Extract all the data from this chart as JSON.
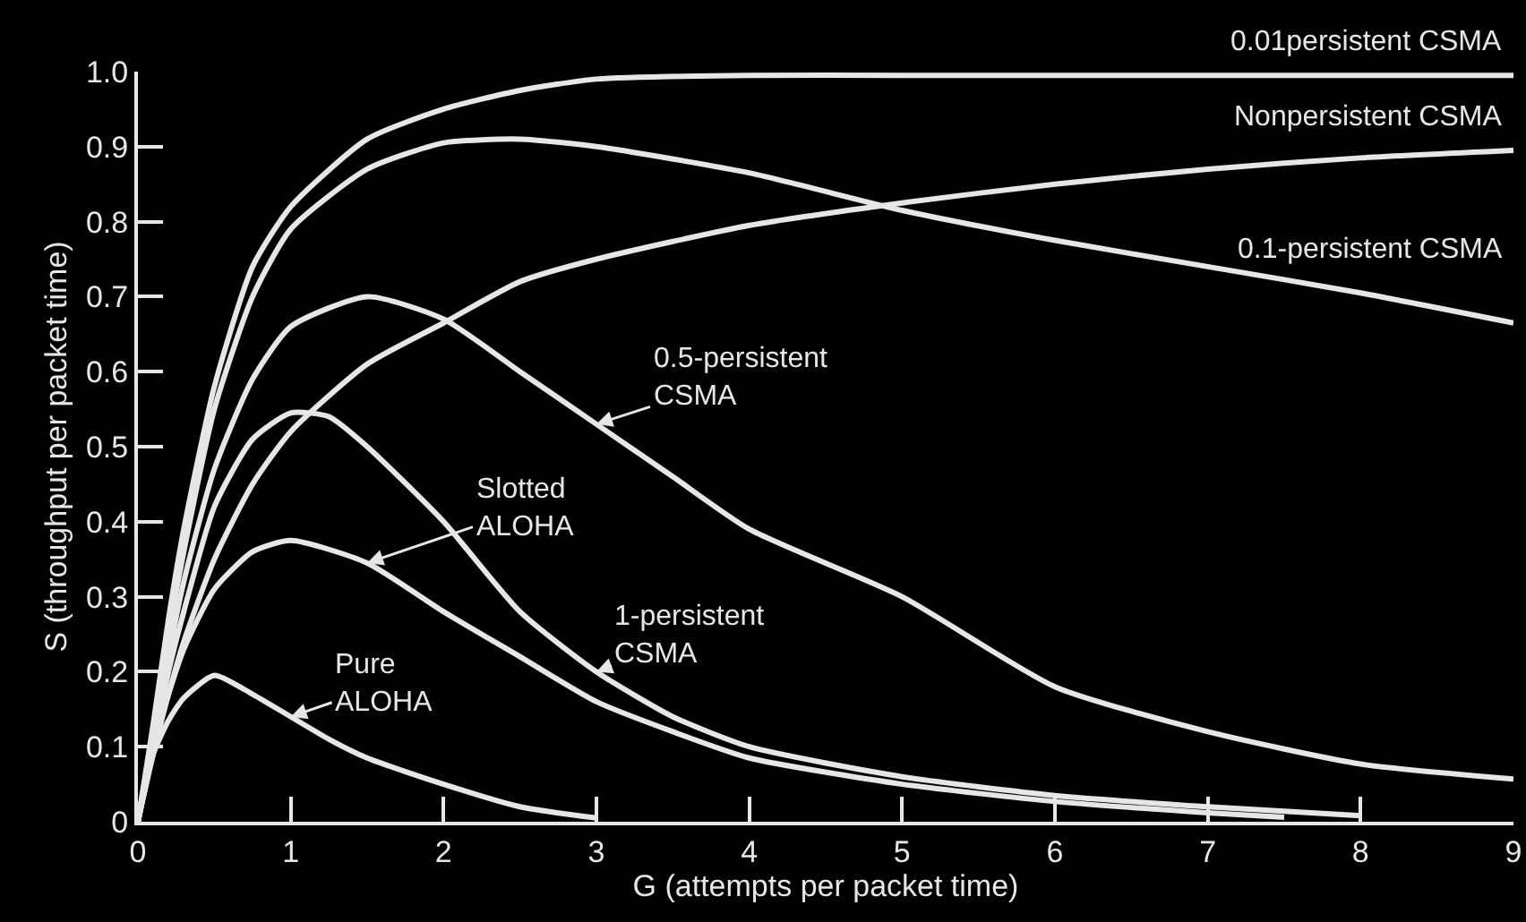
{
  "chart_data": {
    "type": "line",
    "xlabel": "G (attempts per packet time)",
    "ylabel": "S (throughput per packet time)",
    "xlim": [
      0,
      9
    ],
    "xticks": [
      0,
      1,
      2,
      3,
      4,
      5,
      6,
      7,
      8,
      9
    ],
    "ylim": [
      0,
      1
    ],
    "yticks": [
      0,
      0.1,
      0.2,
      0.3,
      0.4,
      0.5,
      0.6,
      0.7,
      0.8,
      0.9,
      {
        "value": 1,
        "label": "1.0"
      }
    ],
    "grid": false,
    "legend": false,
    "marker": "none",
    "line_style": "solid",
    "series": [
      {
        "name": "0.01persistent CSMA",
        "color": "#e6e6e6",
        "x": [
          0,
          0.1,
          0.2,
          0.3,
          0.5,
          0.75,
          1,
          1.5,
          2,
          2.5,
          3,
          4,
          5,
          6,
          7,
          8,
          9
        ],
        "values": [
          0,
          0.13,
          0.27,
          0.39,
          0.58,
          0.74,
          0.82,
          0.91,
          0.95,
          0.975,
          0.99,
          0.995,
          0.995,
          0.995,
          0.995,
          0.995,
          0.995
        ]
      },
      {
        "name": "Nonpersistent CSMA",
        "color": "#e6e6e6",
        "x": [
          0,
          0.1,
          0.2,
          0.3,
          0.5,
          0.75,
          1,
          1.5,
          2,
          2.5,
          3,
          4,
          5,
          6,
          7,
          8,
          9
        ],
        "values": [
          0,
          0.09,
          0.17,
          0.24,
          0.35,
          0.45,
          0.52,
          0.61,
          0.665,
          0.72,
          0.75,
          0.795,
          0.825,
          0.85,
          0.87,
          0.885,
          0.895
        ]
      },
      {
        "name": "0.1-persistent CSMA",
        "color": "#e6e6e6",
        "x": [
          0,
          0.1,
          0.2,
          0.3,
          0.5,
          0.75,
          1,
          1.5,
          2,
          2.5,
          3,
          4,
          5,
          6,
          7,
          8,
          9
        ],
        "values": [
          0,
          0.12,
          0.25,
          0.36,
          0.55,
          0.7,
          0.79,
          0.87,
          0.905,
          0.91,
          0.9,
          0.865,
          0.815,
          0.775,
          0.74,
          0.705,
          0.665
        ]
      },
      {
        "name": "0.5-persistent CSMA",
        "color": "#e6e6e6",
        "x": [
          0,
          0.1,
          0.2,
          0.3,
          0.5,
          0.75,
          1,
          1.5,
          2,
          2.5,
          3,
          3.5,
          4,
          5,
          6,
          7,
          8,
          9
        ],
        "values": [
          0,
          0.1,
          0.22,
          0.32,
          0.47,
          0.59,
          0.66,
          0.7,
          0.67,
          0.6,
          0.53,
          0.46,
          0.39,
          0.3,
          0.18,
          0.12,
          0.077,
          0.057
        ]
      },
      {
        "name": "1-persistent CSMA",
        "color": "#e6e6e6",
        "x": [
          0,
          0.1,
          0.2,
          0.3,
          0.5,
          0.75,
          1,
          1.25,
          1.5,
          2,
          2.5,
          3,
          3.5,
          4,
          5,
          6,
          7,
          8
        ],
        "values": [
          0,
          0.1,
          0.2,
          0.28,
          0.42,
          0.51,
          0.545,
          0.54,
          0.5,
          0.4,
          0.28,
          0.2,
          0.14,
          0.1,
          0.06,
          0.035,
          0.02,
          0.008
        ]
      },
      {
        "name": "Slotted ALOHA",
        "color": "#e6e6e6",
        "x": [
          0,
          0.1,
          0.2,
          0.3,
          0.5,
          0.75,
          1,
          1.5,
          2,
          2.5,
          3,
          3.5,
          4,
          5,
          6,
          7,
          7.5
        ],
        "values": [
          0,
          0.1,
          0.17,
          0.23,
          0.31,
          0.36,
          0.375,
          0.345,
          0.28,
          0.22,
          0.16,
          0.12,
          0.085,
          0.05,
          0.027,
          0.012,
          0.006
        ]
      },
      {
        "name": "Pure ALOHA",
        "color": "#e6e6e6",
        "x": [
          0,
          0.1,
          0.2,
          0.3,
          0.5,
          0.75,
          1,
          1.25,
          1.5,
          2,
          2.5,
          3
        ],
        "values": [
          0,
          0.09,
          0.135,
          0.165,
          0.195,
          0.17,
          0.14,
          0.11,
          0.085,
          0.05,
          0.02,
          0.005
        ]
      }
    ]
  }
}
